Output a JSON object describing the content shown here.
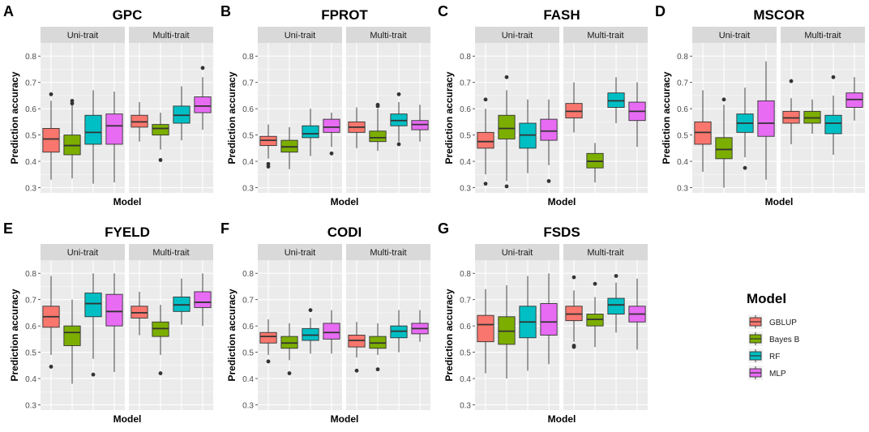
{
  "chart_data": {
    "type": "boxplot",
    "y_axis_label": "Prediction accuracy",
    "x_axis_label": "Model",
    "y_ticks": [
      "0.3",
      "0.4",
      "0.5",
      "0.6",
      "0.7",
      "0.8"
    ],
    "ylim": [
      0.28,
      0.85
    ],
    "facets": [
      "Uni-trait",
      "Multi-trait"
    ],
    "models": [
      "GBLUP",
      "Bayes B",
      "RF",
      "MLP"
    ],
    "legend": {
      "title": "Model",
      "position": "right",
      "entries": [
        "GBLUP",
        "Bayes B",
        "RF",
        "MLP"
      ]
    },
    "colors": {
      "GBLUP": "#F8766D",
      "Bayes B": "#7CAE00",
      "RF": "#00BFC4",
      "MLP": "#E76BF3",
      "strip": "#D9D9D9",
      "panel": "#EBEBEB",
      "grid": "#FFFFFF"
    },
    "panels": [
      {
        "letter": "A",
        "title": "GPC",
        "uni": [
          {
            "model": "GBLUP",
            "min": 0.33,
            "q1": 0.435,
            "median": 0.485,
            "q3": 0.525,
            "max": 0.63,
            "outliers": [
              0.655
            ]
          },
          {
            "model": "Bayes B",
            "min": 0.335,
            "q1": 0.425,
            "median": 0.46,
            "q3": 0.5,
            "max": 0.615,
            "outliers": [
              0.62,
              0.63
            ]
          },
          {
            "model": "RF",
            "min": 0.315,
            "q1": 0.465,
            "median": 0.51,
            "q3": 0.575,
            "max": 0.67,
            "outliers": []
          },
          {
            "model": "MLP",
            "min": 0.32,
            "q1": 0.465,
            "median": 0.535,
            "q3": 0.58,
            "max": 0.665,
            "outliers": []
          }
        ],
        "multi": [
          {
            "model": "GBLUP",
            "min": 0.475,
            "q1": 0.53,
            "median": 0.55,
            "q3": 0.575,
            "max": 0.625,
            "outliers": []
          },
          {
            "model": "Bayes B",
            "min": 0.445,
            "q1": 0.5,
            "median": 0.525,
            "q3": 0.54,
            "max": 0.585,
            "outliers": [
              0.405
            ]
          },
          {
            "model": "RF",
            "min": 0.48,
            "q1": 0.545,
            "median": 0.575,
            "q3": 0.61,
            "max": 0.685,
            "outliers": []
          },
          {
            "model": "MLP",
            "min": 0.52,
            "q1": 0.585,
            "median": 0.61,
            "q3": 0.645,
            "max": 0.72,
            "outliers": [
              0.755
            ]
          }
        ]
      },
      {
        "letter": "B",
        "title": "FPROT",
        "uni": [
          {
            "model": "GBLUP",
            "min": 0.41,
            "q1": 0.46,
            "median": 0.48,
            "q3": 0.495,
            "max": 0.54,
            "outliers": [
              0.39,
              0.38
            ]
          },
          {
            "model": "Bayes B",
            "min": 0.37,
            "q1": 0.435,
            "median": 0.455,
            "q3": 0.48,
            "max": 0.53,
            "outliers": []
          },
          {
            "model": "RF",
            "min": 0.42,
            "q1": 0.49,
            "median": 0.505,
            "q3": 0.535,
            "max": 0.6,
            "outliers": []
          },
          {
            "model": "MLP",
            "min": 0.455,
            "q1": 0.51,
            "median": 0.53,
            "q3": 0.56,
            "max": 0.585,
            "outliers": [
              0.43
            ]
          }
        ],
        "multi": [
          {
            "model": "GBLUP",
            "min": 0.45,
            "q1": 0.51,
            "median": 0.53,
            "q3": 0.55,
            "max": 0.605,
            "outliers": []
          },
          {
            "model": "Bayes B",
            "min": 0.44,
            "q1": 0.475,
            "median": 0.49,
            "q3": 0.515,
            "max": 0.6,
            "outliers": [
              0.61,
              0.615
            ]
          },
          {
            "model": "RF",
            "min": 0.475,
            "q1": 0.535,
            "median": 0.555,
            "q3": 0.58,
            "max": 0.625,
            "outliers": [
              0.655,
              0.465
            ]
          },
          {
            "model": "MLP",
            "min": 0.475,
            "q1": 0.52,
            "median": 0.54,
            "q3": 0.555,
            "max": 0.615,
            "outliers": []
          }
        ]
      },
      {
        "letter": "C",
        "title": "FASH",
        "uni": [
          {
            "model": "GBLUP",
            "min": 0.35,
            "q1": 0.45,
            "median": 0.475,
            "q3": 0.51,
            "max": 0.6,
            "outliers": [
              0.635,
              0.315
            ]
          },
          {
            "model": "Bayes B",
            "min": 0.325,
            "q1": 0.485,
            "median": 0.525,
            "q3": 0.575,
            "max": 0.67,
            "outliers": [
              0.72,
              0.305
            ]
          },
          {
            "model": "RF",
            "min": 0.355,
            "q1": 0.45,
            "median": 0.5,
            "q3": 0.545,
            "max": 0.635,
            "outliers": []
          },
          {
            "model": "MLP",
            "min": 0.385,
            "q1": 0.48,
            "median": 0.515,
            "q3": 0.56,
            "max": 0.635,
            "outliers": [
              0.325
            ]
          }
        ],
        "multi": [
          {
            "model": "GBLUP",
            "min": 0.51,
            "q1": 0.565,
            "median": 0.59,
            "q3": 0.62,
            "max": 0.7,
            "outliers": []
          },
          {
            "model": "Bayes B",
            "min": 0.32,
            "q1": 0.375,
            "median": 0.4,
            "q3": 0.43,
            "max": 0.47,
            "outliers": []
          },
          {
            "model": "RF",
            "min": 0.545,
            "q1": 0.605,
            "median": 0.63,
            "q3": 0.66,
            "max": 0.72,
            "outliers": []
          },
          {
            "model": "MLP",
            "min": 0.455,
            "q1": 0.555,
            "median": 0.59,
            "q3": 0.625,
            "max": 0.7,
            "outliers": []
          }
        ]
      },
      {
        "letter": "D",
        "title": "MSCOR",
        "uni": [
          {
            "model": "GBLUP",
            "min": 0.36,
            "q1": 0.465,
            "median": 0.51,
            "q3": 0.55,
            "max": 0.67,
            "outliers": []
          },
          {
            "model": "Bayes B",
            "min": 0.3,
            "q1": 0.41,
            "median": 0.445,
            "q3": 0.49,
            "max": 0.615,
            "outliers": [
              0.635
            ]
          },
          {
            "model": "RF",
            "min": 0.415,
            "q1": 0.51,
            "median": 0.545,
            "q3": 0.58,
            "max": 0.68,
            "outliers": [
              0.375
            ]
          },
          {
            "model": "MLP",
            "min": 0.33,
            "q1": 0.495,
            "median": 0.545,
            "q3": 0.63,
            "max": 0.78,
            "outliers": []
          }
        ],
        "multi": [
          {
            "model": "GBLUP",
            "min": 0.465,
            "q1": 0.545,
            "median": 0.565,
            "q3": 0.59,
            "max": 0.64,
            "outliers": [
              0.705
            ]
          },
          {
            "model": "Bayes B",
            "min": 0.505,
            "q1": 0.545,
            "median": 0.565,
            "q3": 0.59,
            "max": 0.635,
            "outliers": []
          },
          {
            "model": "RF",
            "min": 0.425,
            "q1": 0.505,
            "median": 0.545,
            "q3": 0.575,
            "max": 0.65,
            "outliers": [
              0.72
            ]
          },
          {
            "model": "MLP",
            "min": 0.555,
            "q1": 0.605,
            "median": 0.635,
            "q3": 0.66,
            "max": 0.72,
            "outliers": []
          }
        ]
      },
      {
        "letter": "E",
        "title": "FYELD",
        "uni": [
          {
            "model": "GBLUP",
            "min": 0.49,
            "q1": 0.595,
            "median": 0.635,
            "q3": 0.675,
            "max": 0.79,
            "outliers": [
              0.445
            ]
          },
          {
            "model": "Bayes B",
            "min": 0.38,
            "q1": 0.525,
            "median": 0.575,
            "q3": 0.6,
            "max": 0.7,
            "outliers": []
          },
          {
            "model": "RF",
            "min": 0.475,
            "q1": 0.635,
            "median": 0.685,
            "q3": 0.725,
            "max": 0.8,
            "outliers": [
              0.415
            ]
          },
          {
            "model": "MLP",
            "min": 0.425,
            "q1": 0.6,
            "median": 0.655,
            "q3": 0.72,
            "max": 0.8,
            "outliers": []
          }
        ],
        "multi": [
          {
            "model": "GBLUP",
            "min": 0.565,
            "q1": 0.63,
            "median": 0.65,
            "q3": 0.675,
            "max": 0.73,
            "outliers": []
          },
          {
            "model": "Bayes B",
            "min": 0.49,
            "q1": 0.56,
            "median": 0.59,
            "q3": 0.615,
            "max": 0.68,
            "outliers": [
              0.42
            ]
          },
          {
            "model": "RF",
            "min": 0.605,
            "q1": 0.655,
            "median": 0.68,
            "q3": 0.71,
            "max": 0.78,
            "outliers": []
          },
          {
            "model": "MLP",
            "min": 0.6,
            "q1": 0.67,
            "median": 0.69,
            "q3": 0.73,
            "max": 0.8,
            "outliers": []
          }
        ]
      },
      {
        "letter": "F",
        "title": "CODI",
        "uni": [
          {
            "model": "GBLUP",
            "min": 0.49,
            "q1": 0.535,
            "median": 0.56,
            "q3": 0.575,
            "max": 0.625,
            "outliers": [
              0.465
            ]
          },
          {
            "model": "Bayes B",
            "min": 0.47,
            "q1": 0.515,
            "median": 0.535,
            "q3": 0.56,
            "max": 0.61,
            "outliers": [
              0.42
            ]
          },
          {
            "model": "RF",
            "min": 0.495,
            "q1": 0.545,
            "median": 0.565,
            "q3": 0.59,
            "max": 0.63,
            "outliers": [
              0.66
            ]
          },
          {
            "model": "MLP",
            "min": 0.495,
            "q1": 0.55,
            "median": 0.575,
            "q3": 0.61,
            "max": 0.66,
            "outliers": []
          }
        ],
        "multi": [
          {
            "model": "GBLUP",
            "min": 0.48,
            "q1": 0.52,
            "median": 0.545,
            "q3": 0.565,
            "max": 0.615,
            "outliers": [
              0.43
            ]
          },
          {
            "model": "Bayes B",
            "min": 0.49,
            "q1": 0.515,
            "median": 0.535,
            "q3": 0.56,
            "max": 0.61,
            "outliers": [
              0.435
            ]
          },
          {
            "model": "RF",
            "min": 0.5,
            "q1": 0.555,
            "median": 0.58,
            "q3": 0.6,
            "max": 0.66,
            "outliers": []
          },
          {
            "model": "MLP",
            "min": 0.54,
            "q1": 0.57,
            "median": 0.59,
            "q3": 0.61,
            "max": 0.66,
            "outliers": []
          }
        ]
      },
      {
        "letter": "G",
        "title": "FSDS",
        "uni": [
          {
            "model": "GBLUP",
            "min": 0.42,
            "q1": 0.54,
            "median": 0.605,
            "q3": 0.64,
            "max": 0.74,
            "outliers": []
          },
          {
            "model": "Bayes B",
            "min": 0.4,
            "q1": 0.53,
            "median": 0.58,
            "q3": 0.635,
            "max": 0.755,
            "outliers": []
          },
          {
            "model": "RF",
            "min": 0.43,
            "q1": 0.555,
            "median": 0.615,
            "q3": 0.675,
            "max": 0.79,
            "outliers": []
          },
          {
            "model": "MLP",
            "min": 0.455,
            "q1": 0.565,
            "median": 0.615,
            "q3": 0.685,
            "max": 0.8,
            "outliers": []
          }
        ],
        "multi": [
          {
            "model": "GBLUP",
            "min": 0.54,
            "q1": 0.62,
            "median": 0.645,
            "q3": 0.675,
            "max": 0.735,
            "outliers": [
              0.785,
              0.525,
              0.52
            ]
          },
          {
            "model": "Bayes B",
            "min": 0.52,
            "q1": 0.6,
            "median": 0.625,
            "q3": 0.645,
            "max": 0.71,
            "outliers": [
              0.76
            ]
          },
          {
            "model": "RF",
            "min": 0.575,
            "q1": 0.645,
            "median": 0.68,
            "q3": 0.705,
            "max": 0.765,
            "outliers": [
              0.79
            ]
          },
          {
            "model": "MLP",
            "min": 0.51,
            "q1": 0.615,
            "median": 0.645,
            "q3": 0.675,
            "max": 0.78,
            "outliers": []
          }
        ]
      }
    ]
  }
}
